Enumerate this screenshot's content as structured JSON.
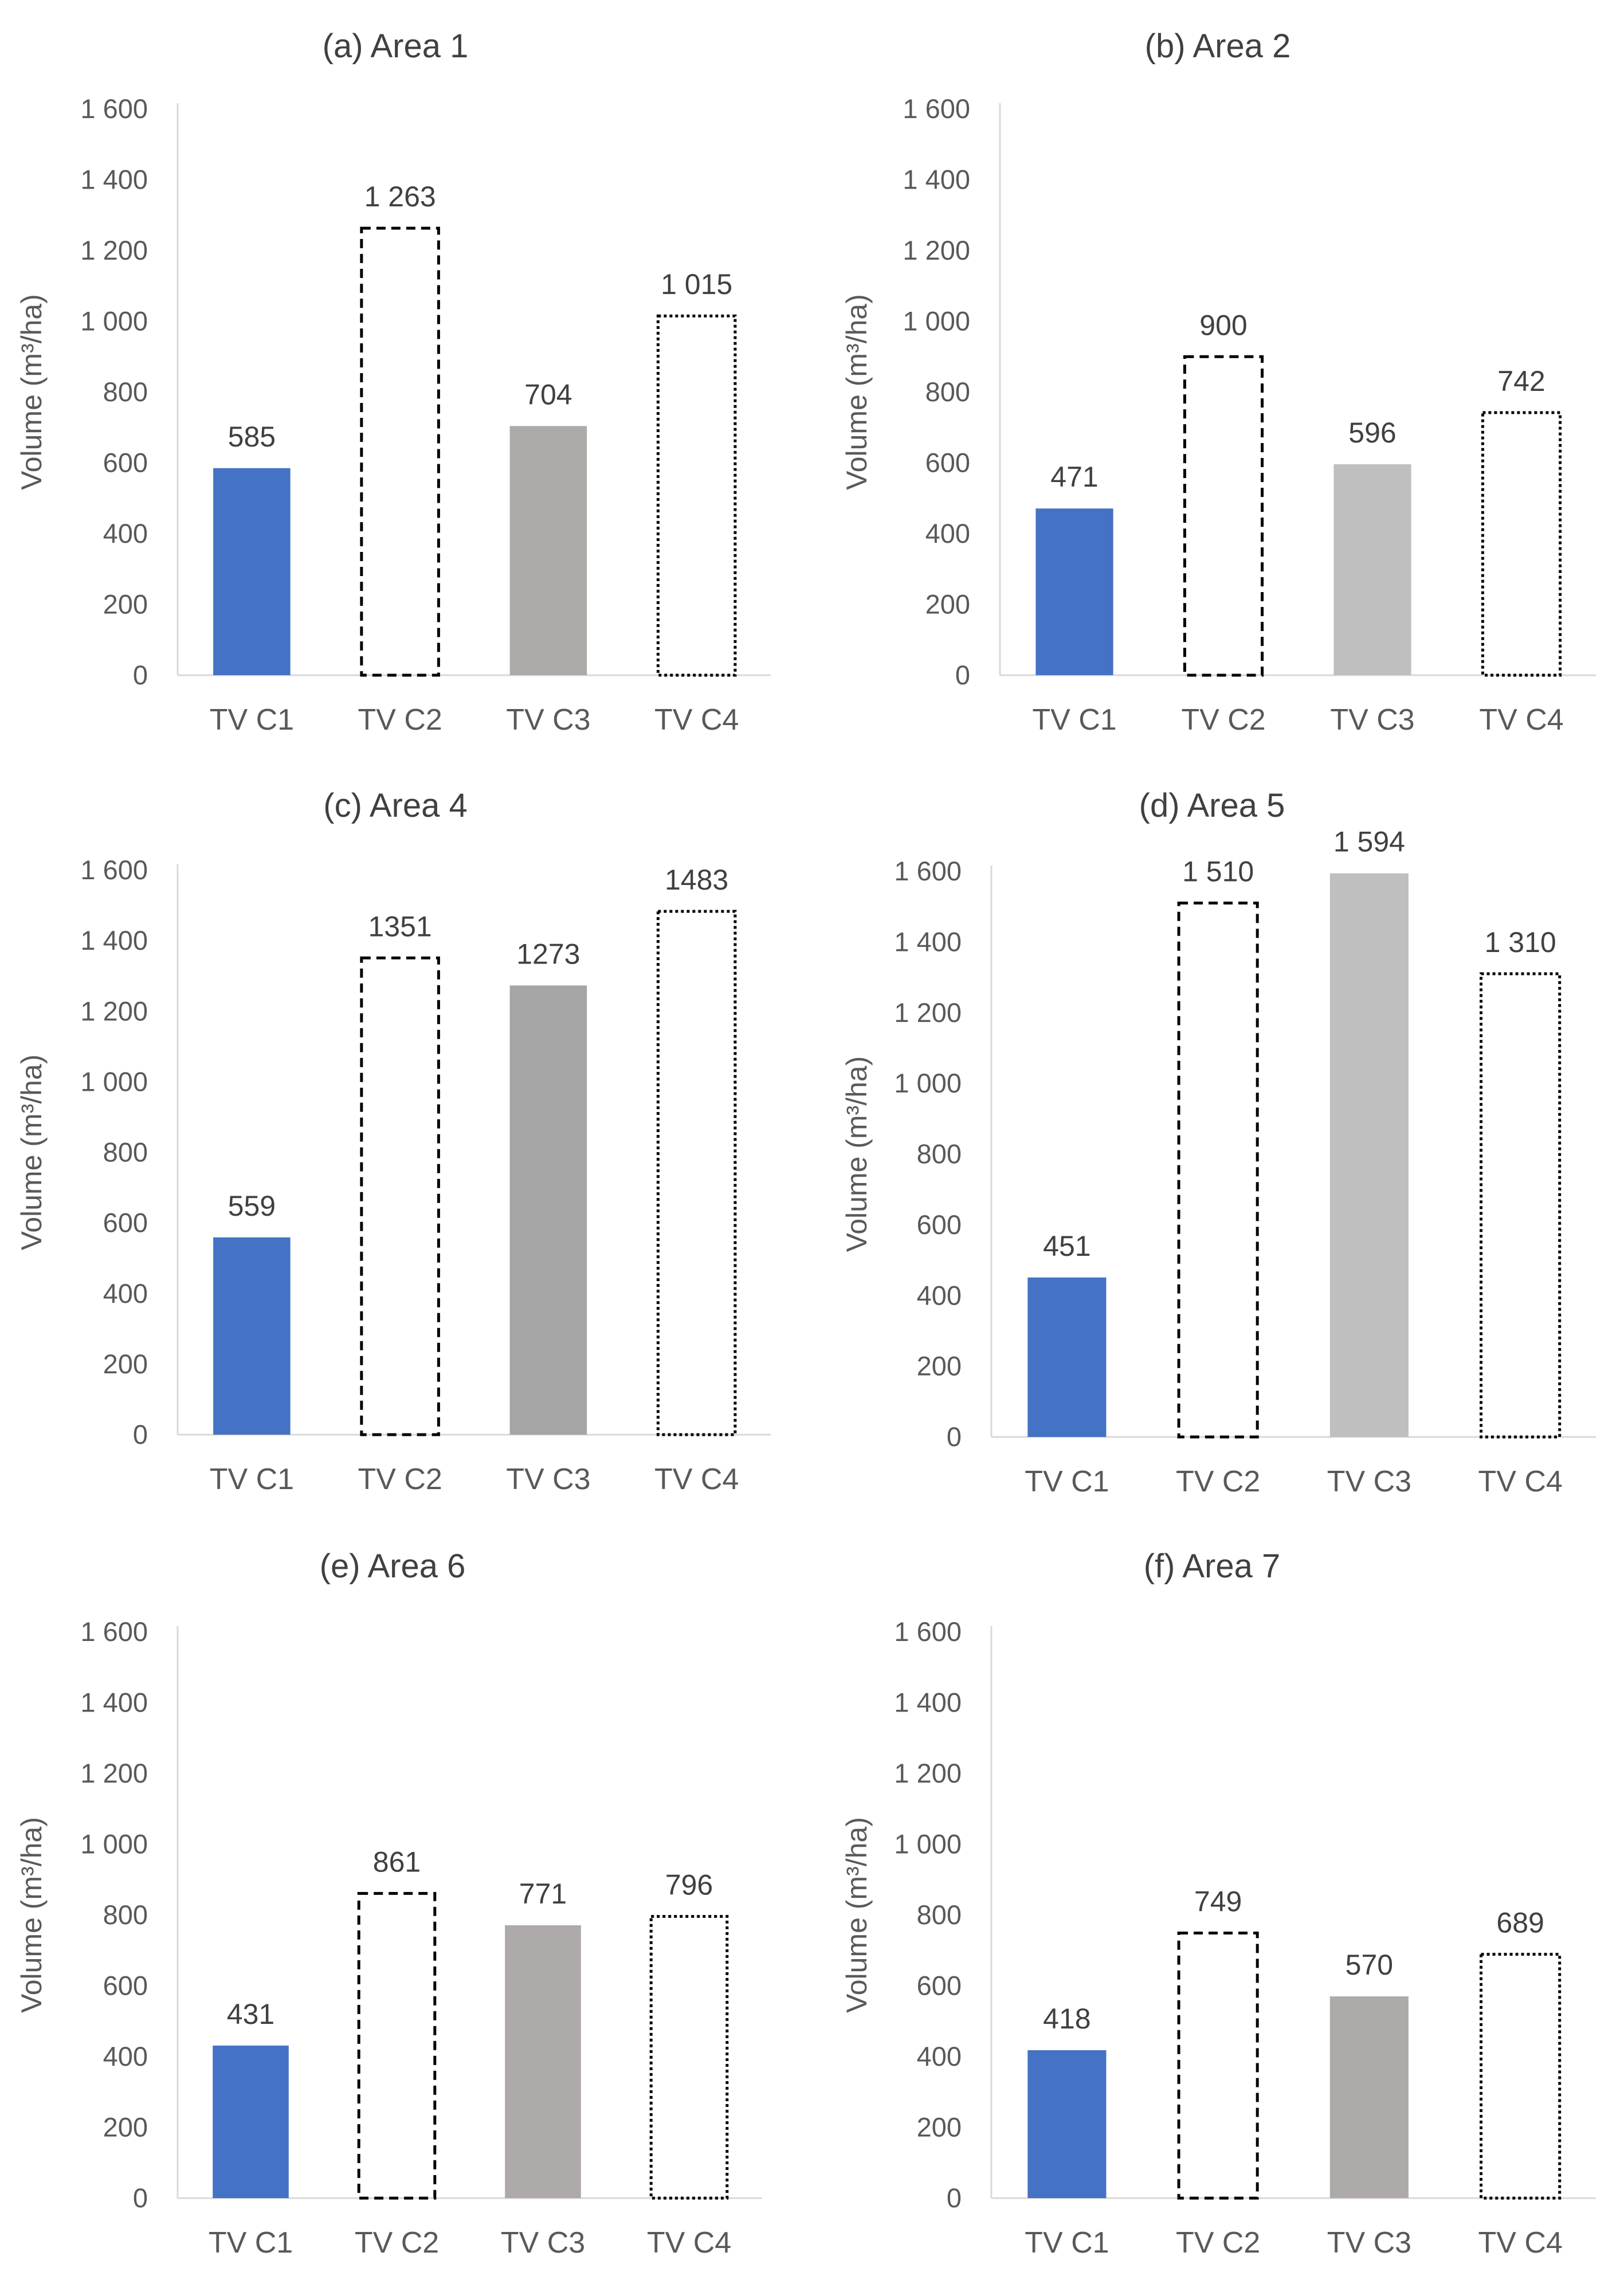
{
  "chart_data": [
    {
      "type": "bar",
      "title": "(a) Area 1",
      "ylabel": "Volume (m³/ha)",
      "xlabel": "",
      "ylim": [
        0,
        1600
      ],
      "yticks": [
        "0",
        "200",
        "400",
        "600",
        "800",
        "1 000",
        "1 200",
        "1 400",
        "1 600"
      ],
      "categories": [
        "TV C1",
        "TV C2",
        "TV C3",
        "TV C4"
      ],
      "values": [
        585,
        1263,
        704,
        1015
      ],
      "data_labels": [
        "585",
        "1 263",
        "704",
        "1 015"
      ],
      "styles": [
        "solid",
        "dashed",
        "solid",
        "dotted"
      ],
      "colors": [
        "#4472c4",
        "#ffffff",
        "#aeaaaa",
        "#ffffff"
      ],
      "grid": false
    },
    {
      "type": "bar",
      "title": "(b) Area 2",
      "ylabel": "Volume (m³/ha)",
      "xlabel": "",
      "ylim": [
        0,
        1600
      ],
      "yticks": [
        "0",
        "200",
        "400",
        "600",
        "800",
        "1 000",
        "1 200",
        "1 400",
        "1 600"
      ],
      "categories": [
        "TV C1",
        "TV C2",
        "TV C3",
        "TV C4"
      ],
      "values": [
        471,
        900,
        596,
        742
      ],
      "data_labels": [
        "471",
        "900",
        "596",
        "742"
      ],
      "styles": [
        "solid",
        "dashed",
        "solid",
        "dotted"
      ],
      "colors": [
        "#4472c4",
        "#ffffff",
        "#bfbfbf",
        "#ffffff"
      ],
      "grid": false
    },
    {
      "type": "bar",
      "title": "(c) Area 4",
      "ylabel": "Volume (m³/ha)",
      "xlabel": "",
      "ylim": [
        0,
        1600
      ],
      "yticks": [
        "0",
        "200",
        "400",
        "600",
        "800",
        "1 000",
        "1 200",
        "1 400",
        "1 600"
      ],
      "categories": [
        "TV C1",
        "TV C2",
        "TV C3",
        "TV C4"
      ],
      "values": [
        559,
        1351,
        1273,
        1483
      ],
      "data_labels": [
        "559",
        "1351",
        "1273",
        "1483"
      ],
      "styles": [
        "solid",
        "dashed",
        "solid",
        "dotted"
      ],
      "colors": [
        "#4472c4",
        "#ffffff",
        "#a5a5a5",
        "#ffffff"
      ],
      "grid": false
    },
    {
      "type": "bar",
      "title": "(d) Area 5",
      "ylabel": "Volume (m³/ha)",
      "xlabel": "",
      "ylim": [
        0,
        1600
      ],
      "yticks": [
        "0",
        "200",
        "400",
        "600",
        "800",
        "1 000",
        "1 200",
        "1 400",
        "1 600"
      ],
      "categories": [
        "TV C1",
        "TV C2",
        "TV C3",
        "TV C4"
      ],
      "values": [
        451,
        1510,
        1594,
        1310
      ],
      "data_labels": [
        "451",
        "1 510",
        "1 594",
        "1 310"
      ],
      "styles": [
        "solid",
        "dashed",
        "solid",
        "dotted"
      ],
      "colors": [
        "#4472c4",
        "#ffffff",
        "#bfbfbf",
        "#ffffff"
      ],
      "grid": false
    },
    {
      "type": "bar",
      "title": "(e) Area 6",
      "ylabel": "Volume (m³/ha)",
      "xlabel": "",
      "ylim": [
        0,
        1600
      ],
      "yticks": [
        "0",
        "200",
        "400",
        "600",
        "800",
        "1 000",
        "1 200",
        "1 400",
        "1 600"
      ],
      "categories": [
        "TV C1",
        "TV C2",
        "TV C3",
        "TV C4"
      ],
      "values": [
        431,
        861,
        771,
        796
      ],
      "data_labels": [
        "431",
        "861",
        "771",
        "796"
      ],
      "styles": [
        "solid",
        "dashed",
        "solid",
        "dotted"
      ],
      "colors": [
        "#4472c4",
        "#ffffff",
        "#aeaaaa",
        "#ffffff"
      ],
      "grid": false
    },
    {
      "type": "bar",
      "title": "(f) Area 7",
      "ylabel": "Volume (m³/ha)",
      "xlabel": "",
      "ylim": [
        0,
        1600
      ],
      "yticks": [
        "0",
        "200",
        "400",
        "600",
        "800",
        "1 000",
        "1 200",
        "1 400",
        "1 600"
      ],
      "categories": [
        "TV C1",
        "TV C2",
        "TV C3",
        "TV C4"
      ],
      "values": [
        418,
        749,
        570,
        689
      ],
      "data_labels": [
        "418",
        "749",
        "570",
        "689"
      ],
      "styles": [
        "solid",
        "dashed",
        "solid",
        "dotted"
      ],
      "colors": [
        "#4472c4",
        "#ffffff",
        "#aeaaaa",
        "#ffffff"
      ],
      "grid": false
    }
  ]
}
